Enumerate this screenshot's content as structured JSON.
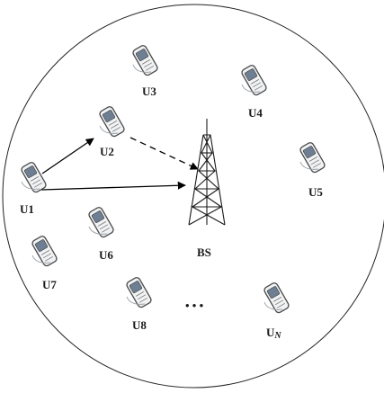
{
  "users": [
    {
      "id": "u1",
      "label": "U1"
    },
    {
      "id": "u2",
      "label": "U2"
    },
    {
      "id": "u3",
      "label": "U3"
    },
    {
      "id": "u4",
      "label": "U4"
    },
    {
      "id": "u5",
      "label": "U5"
    },
    {
      "id": "u6",
      "label": "U6"
    },
    {
      "id": "u7",
      "label": "U7"
    },
    {
      "id": "u8",
      "label": "U8"
    },
    {
      "id": "un",
      "label": "U",
      "subscript": "N"
    }
  ],
  "base_station": {
    "label": "BS"
  },
  "ellipsis": "• • •",
  "links": [
    {
      "from": "U1",
      "to": "U2",
      "style": "solid"
    },
    {
      "from": "U1",
      "to": "BS",
      "style": "solid"
    },
    {
      "from": "U2",
      "to": "BS",
      "style": "dashed"
    }
  ],
  "colors": {
    "device_fill": "#f1f2f4",
    "device_stroke": "#4a4a4a",
    "screen": "#6e7f93",
    "line": "#000000"
  }
}
